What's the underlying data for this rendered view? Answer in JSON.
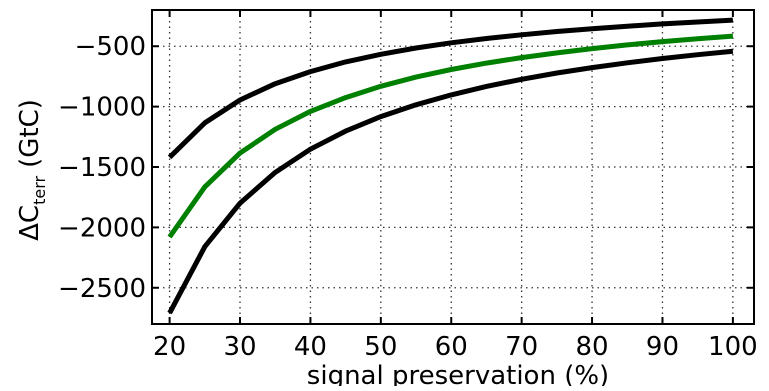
{
  "chart_data": {
    "type": "line",
    "xlabel": "signal preservation (%)",
    "ylabel_main": "ΔC",
    "ylabel_subscript": "terr",
    "ylabel_unit": "(GtC)",
    "xlim": [
      17.5,
      103
    ],
    "ylim": [
      -2800,
      -200
    ],
    "xticks": [
      20,
      30,
      40,
      50,
      60,
      70,
      80,
      90,
      100
    ],
    "xtick_labels": [
      "20",
      "30",
      "40",
      "50",
      "60",
      "70",
      "80",
      "90",
      "100"
    ],
    "yticks": [
      -500,
      -1000,
      -1500,
      -2000,
      -2500
    ],
    "ytick_labels": [
      "−500",
      "−1000",
      "−1500",
      "−2000",
      "−2500"
    ],
    "grid": true,
    "series": [
      {
        "color": "#000000",
        "x": [
          20,
          25,
          30,
          35,
          40,
          45,
          50,
          55,
          60,
          65,
          70,
          75,
          80,
          85,
          90,
          95,
          100
        ],
        "y": [
          -1420,
          -1135,
          -945,
          -810,
          -710,
          -630,
          -567,
          -515,
          -472,
          -436,
          -405,
          -378,
          -355,
          -334,
          -315,
          -299,
          -284
        ]
      },
      {
        "color": "#008000",
        "x": [
          20,
          25,
          30,
          35,
          40,
          45,
          50,
          55,
          60,
          65,
          70,
          75,
          80,
          85,
          90,
          95,
          100
        ],
        "y": [
          -2080,
          -1665,
          -1385,
          -1188,
          -1040,
          -925,
          -832,
          -756,
          -693,
          -640,
          -594,
          -555,
          -520,
          -489,
          -462,
          -438,
          -416
        ]
      },
      {
        "color": "#000000",
        "x": [
          20,
          25,
          30,
          35,
          40,
          45,
          50,
          55,
          60,
          65,
          70,
          75,
          80,
          85,
          90,
          95,
          100
        ],
        "y": [
          -2710,
          -2160,
          -1800,
          -1545,
          -1353,
          -1203,
          -1083,
          -985,
          -903,
          -833,
          -774,
          -722,
          -677,
          -637,
          -602,
          -570,
          -542
        ]
      }
    ]
  }
}
